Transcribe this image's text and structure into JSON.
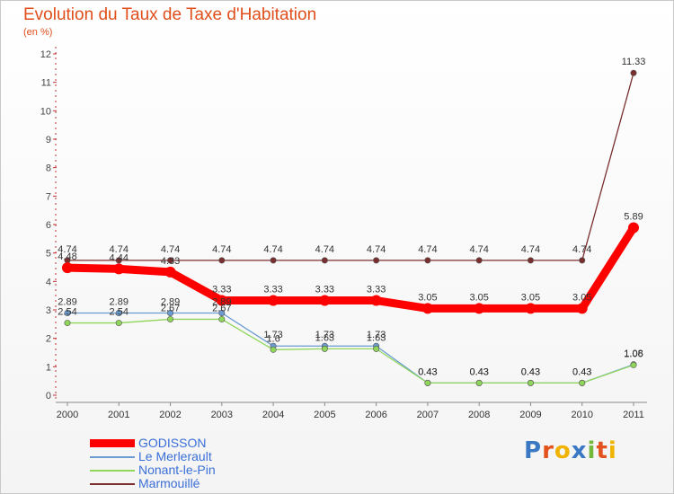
{
  "title": "Evolution du Taux de Taxe d'Habitation",
  "subtitle": "(en %)",
  "brand": {
    "name": "Proxiti",
    "letters": [
      {
        "char": "P",
        "color": "#3b78c4"
      },
      {
        "char": "r",
        "color": "#e2531d"
      },
      {
        "char": "o",
        "color": "#f0b400"
      },
      {
        "char": "x",
        "color": "#3b78c4"
      },
      {
        "char": "i",
        "color": "#74b83c"
      },
      {
        "char": "t",
        "color": "#e2531d"
      },
      {
        "char": "i",
        "color": "#f0b400"
      }
    ]
  },
  "chart_data": {
    "type": "line",
    "title": "Evolution du Taux de Taxe d'Habitation",
    "ylabel": "(en %)",
    "xlabel": "",
    "x": [
      "2000",
      "2001",
      "2002",
      "2003",
      "2004",
      "2005",
      "2006",
      "2007",
      "2008",
      "2009",
      "2010",
      "2011"
    ],
    "ylim": [
      0,
      12
    ],
    "yticks": [
      "0",
      "1",
      "2",
      "3",
      "4",
      "5",
      "6",
      "7",
      "8",
      "9",
      "10",
      "11",
      "12"
    ],
    "grid": false,
    "legend_position": "bottom-left",
    "series": [
      {
        "name": "GODISSON",
        "color": "#ff0000",
        "values": [
          4.48,
          4.44,
          4.33,
          3.33,
          3.33,
          3.33,
          3.33,
          3.05,
          3.05,
          3.05,
          3.05,
          5.89
        ],
        "labels": [
          "4.48",
          "4.44",
          "4.33",
          "3.33",
          "3.33",
          "3.33",
          "3.33",
          "3.05",
          "3.05",
          "3.05",
          "3.05",
          "5.89"
        ]
      },
      {
        "name": "Le Merlerault",
        "color": "#6a9bd1",
        "values": [
          2.89,
          2.89,
          2.89,
          2.89,
          1.73,
          1.73,
          1.73,
          0.43,
          0.43,
          0.43,
          0.43,
          1.08
        ],
        "labels": [
          "2.89",
          "2.89",
          "2.89",
          "2.89",
          "1.73",
          "1.73",
          "1.73",
          "0.43",
          "0.43",
          "0.43",
          "0.43",
          "1.08"
        ]
      },
      {
        "name": "Nonant-le-Pin",
        "color": "#8fd65a",
        "values": [
          2.54,
          2.54,
          2.67,
          2.67,
          1.6,
          1.63,
          1.63,
          0.43,
          0.43,
          0.43,
          0.43,
          1.06
        ],
        "labels": [
          "2.54",
          "2.54",
          "2.67",
          "2.67",
          "1.6",
          "1.63",
          "1.63",
          "0.43",
          "0.43",
          "0.43",
          "0.43",
          "1.06"
        ]
      },
      {
        "name": "Marmouillé",
        "color": "#7a2e2e",
        "values": [
          4.74,
          4.74,
          4.74,
          4.74,
          4.74,
          4.74,
          4.74,
          4.74,
          4.74,
          4.74,
          4.74,
          11.33
        ],
        "labels": [
          "4.74",
          "4.74",
          "4.74",
          "4.74",
          "4.74",
          "4.74",
          "4.74",
          "4.74",
          "4.74",
          "4.74",
          "4.74",
          "11.33"
        ]
      }
    ]
  }
}
